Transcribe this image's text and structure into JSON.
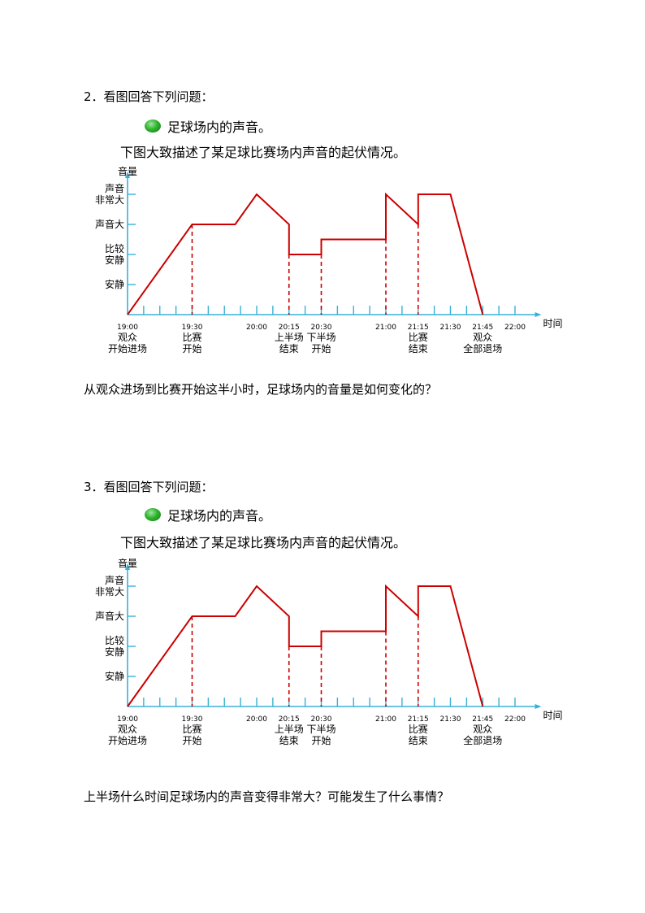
{
  "problems": [
    {
      "number_title": "2．看图回答下列问题：",
      "subtitle": "足球场内的声音。",
      "description": "下图大致描述了某足球比赛场内声音的起伏情况。",
      "question": "从观众进场到比赛开始这半小时，足球场内的音量是如何变化的？"
    },
    {
      "number_title": "3．看图回答下列问题：",
      "subtitle": "足球场内的声音。",
      "description": "下图大致描述了某足球比赛场内声音的起伏情况。",
      "question": "上半场什么时间足球场内的声音变得非常大？可能发生了什么事情？"
    }
  ],
  "chart_data": [
    {
      "type": "line",
      "ylabel": "音量",
      "xlabel": "时间",
      "y_levels": [
        {
          "value": 1,
          "label": [
            "安静"
          ]
        },
        {
          "value": 2,
          "label": [
            "比较",
            "安静"
          ]
        },
        {
          "value": 3,
          "label": [
            "声音大"
          ]
        },
        {
          "value": 4,
          "label": [
            "声音",
            "非常大"
          ]
        }
      ],
      "x_ticks": [
        {
          "t": 0,
          "time": "19:00",
          "label": [
            "观众",
            "开始进场"
          ]
        },
        {
          "t": 30,
          "time": "19:30",
          "label": [
            "比赛",
            "开始"
          ]
        },
        {
          "t": 60,
          "time": "20:00",
          "label": []
        },
        {
          "t": 75,
          "time": "20:15",
          "label": [
            "上半场",
            "结束"
          ]
        },
        {
          "t": 90,
          "time": "20:30",
          "label": [
            "下半场",
            "开始"
          ]
        },
        {
          "t": 120,
          "time": "21:00",
          "label": []
        },
        {
          "t": 135,
          "time": "21:15",
          "label": [
            "比赛",
            "结束"
          ]
        },
        {
          "t": 150,
          "time": "21:30",
          "label": []
        },
        {
          "t": 165,
          "time": "21:45",
          "label": [
            "观众",
            "全部退场"
          ]
        },
        {
          "t": 180,
          "time": "22:00",
          "label": []
        }
      ],
      "series": [
        {
          "t": [
            0,
            30,
            50,
            60,
            75,
            75,
            90,
            90,
            120,
            120,
            135,
            135,
            150,
            165
          ],
          "v": [
            0,
            3,
            3,
            4,
            3,
            2,
            2,
            2.5,
            2.5,
            4,
            3,
            4,
            4,
            0
          ]
        }
      ],
      "dashed_at": [
        30,
        75,
        90,
        120,
        135
      ],
      "xlim": [
        0,
        190
      ],
      "ylim": [
        0,
        4.5
      ],
      "line_color": "#cc0000",
      "axis_color": "#38b0d8"
    },
    {
      "type": "line",
      "ylabel": "音量",
      "xlabel": "时间",
      "y_levels": [
        {
          "value": 1,
          "label": [
            "安静"
          ]
        },
        {
          "value": 2,
          "label": [
            "比较",
            "安静"
          ]
        },
        {
          "value": 3,
          "label": [
            "声音大"
          ]
        },
        {
          "value": 4,
          "label": [
            "声音",
            "非常大"
          ]
        }
      ],
      "x_ticks": [
        {
          "t": 0,
          "time": "19:00",
          "label": [
            "观众",
            "开始进场"
          ]
        },
        {
          "t": 30,
          "time": "19:30",
          "label": [
            "比赛",
            "开始"
          ]
        },
        {
          "t": 60,
          "time": "20:00",
          "label": []
        },
        {
          "t": 75,
          "time": "20:15",
          "label": [
            "上半场",
            "结束"
          ]
        },
        {
          "t": 90,
          "time": "20:30",
          "label": [
            "下半场",
            "开始"
          ]
        },
        {
          "t": 120,
          "time": "21:00",
          "label": []
        },
        {
          "t": 135,
          "time": "21:15",
          "label": [
            "比赛",
            "结束"
          ]
        },
        {
          "t": 150,
          "time": "21:30",
          "label": []
        },
        {
          "t": 165,
          "time": "21:45",
          "label": [
            "观众",
            "全部退场"
          ]
        },
        {
          "t": 180,
          "time": "22:00",
          "label": []
        }
      ],
      "series": [
        {
          "t": [
            0,
            30,
            50,
            60,
            75,
            75,
            90,
            90,
            120,
            120,
            135,
            135,
            150,
            165
          ],
          "v": [
            0,
            3,
            3,
            4,
            3,
            2,
            2,
            2.5,
            2.5,
            4,
            3,
            4,
            4,
            0
          ]
        }
      ],
      "dashed_at": [
        30,
        75,
        90,
        120,
        135
      ],
      "xlim": [
        0,
        190
      ],
      "ylim": [
        0,
        4.5
      ],
      "line_color": "#cc0000",
      "axis_color": "#38b0d8"
    }
  ]
}
